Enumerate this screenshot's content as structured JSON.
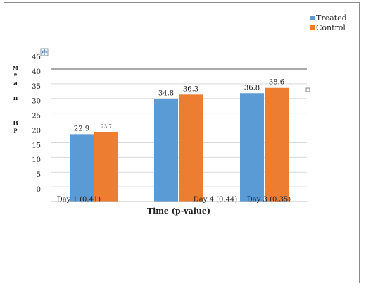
{
  "chart_data": {
    "type": "bar",
    "title": "",
    "xlabel": "Time (p-value)",
    "ylabel_chars": [
      "M",
      "e",
      "a",
      "n",
      "B",
      "P"
    ],
    "categories": [
      "Day 1 (0.41)",
      "Day 4 (0.44)",
      "Day 3 (0.35)"
    ],
    "series": [
      {
        "name": "Treated",
        "color": "#5b9bd5",
        "values": [
          22.9,
          34.8,
          36.8
        ],
        "labels": [
          "22.9",
          "34.8",
          "36.8"
        ]
      },
      {
        "name": "Control",
        "color": "#ed7d31",
        "values": [
          23.7,
          36.3,
          38.6
        ],
        "labels": [
          "23.7",
          "36.3",
          "38.6"
        ]
      }
    ],
    "yticks": [
      "0",
      "5",
      "10",
      "15",
      "20",
      "25",
      "30",
      "35",
      "40",
      "45"
    ],
    "ylim": [
      0,
      45
    ],
    "grid": true,
    "legend": "top-right"
  }
}
